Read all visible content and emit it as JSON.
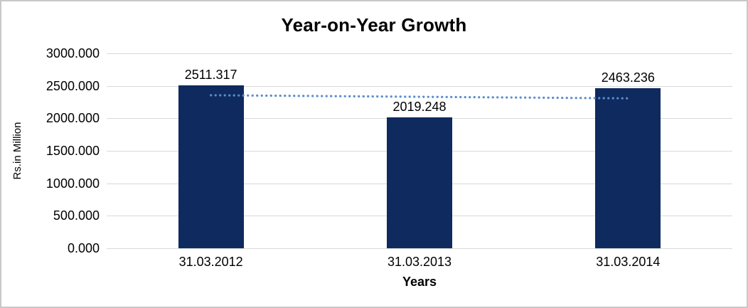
{
  "chart_data": {
    "type": "bar",
    "title": "Year-on-Year Growth",
    "xlabel": "Years",
    "ylabel": "Rs.in Million",
    "categories": [
      "31.03.2012",
      "31.03.2013",
      "31.03.2014"
    ],
    "values": [
      2511.317,
      2019.248,
      2463.236
    ],
    "value_labels": [
      "2511.317",
      "2019.248",
      "2463.236"
    ],
    "yticks": [
      {
        "value": 0,
        "label": "0.000"
      },
      {
        "value": 500,
        "label": "500.000"
      },
      {
        "value": 1000,
        "label": "1000.000"
      },
      {
        "value": 1500,
        "label": "1500.000"
      },
      {
        "value": 2000,
        "label": "2000.000"
      },
      {
        "value": 2500,
        "label": "2500.000"
      },
      {
        "value": 3000,
        "label": "3000.000"
      }
    ],
    "ylim": [
      0,
      3000
    ],
    "gridlines": "horizontal",
    "legend_position": "none",
    "trendline": {
      "kind": "linear",
      "style": "dotted",
      "color": "#5b8dca"
    },
    "colors": {
      "bar": "#0e2a5f",
      "grid": "#d9d9d9",
      "text": "#000000",
      "background": "#ffffff",
      "page_border": "#c8c8c8"
    }
  }
}
